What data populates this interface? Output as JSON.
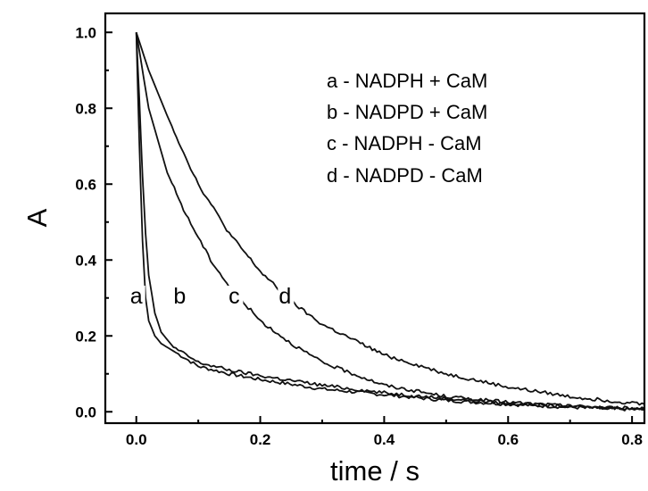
{
  "chart_data": {
    "type": "line",
    "xlabel": "time / s",
    "ylabel": "A",
    "xlim": [
      -0.05,
      0.82
    ],
    "ylim": [
      -0.03,
      1.05
    ],
    "xticks": [
      "0.0",
      "0.2",
      "0.4",
      "0.6",
      "0.8"
    ],
    "yticks": [
      "0.0",
      "0.2",
      "0.4",
      "0.6",
      "0.8",
      "1.0"
    ],
    "grid": false,
    "legend": {
      "position": "top-right",
      "entries": [
        "a - NADPH + CaM",
        "b - NADPD + CaM",
        "c - NADPH - CaM",
        "d - NADPD - CaM"
      ]
    },
    "series": [
      {
        "name": "a",
        "x": [
          0,
          0.005,
          0.01,
          0.015,
          0.02,
          0.03,
          0.04,
          0.06,
          0.08,
          0.1,
          0.15,
          0.2,
          0.3,
          0.4,
          0.5,
          0.6,
          0.7,
          0.82
        ],
        "y": [
          1.0,
          0.7,
          0.45,
          0.3,
          0.24,
          0.2,
          0.18,
          0.16,
          0.14,
          0.12,
          0.1,
          0.085,
          0.06,
          0.045,
          0.03,
          0.02,
          0.012,
          0.005
        ]
      },
      {
        "name": "b",
        "x": [
          0,
          0.005,
          0.01,
          0.015,
          0.02,
          0.03,
          0.04,
          0.06,
          0.08,
          0.1,
          0.15,
          0.2,
          0.3,
          0.4,
          0.5,
          0.6,
          0.7,
          0.82
        ],
        "y": [
          1.0,
          0.82,
          0.62,
          0.47,
          0.36,
          0.26,
          0.21,
          0.17,
          0.15,
          0.13,
          0.11,
          0.095,
          0.07,
          0.05,
          0.035,
          0.022,
          0.014,
          0.008
        ]
      },
      {
        "name": "c",
        "x": [
          0,
          0.02,
          0.05,
          0.08,
          0.1,
          0.12,
          0.15,
          0.2,
          0.25,
          0.3,
          0.4,
          0.5,
          0.6,
          0.7,
          0.82
        ],
        "y": [
          1.0,
          0.8,
          0.63,
          0.52,
          0.46,
          0.4,
          0.33,
          0.24,
          0.18,
          0.13,
          0.07,
          0.04,
          0.025,
          0.015,
          0.008
        ]
      },
      {
        "name": "d",
        "x": [
          0,
          0.02,
          0.05,
          0.08,
          0.1,
          0.15,
          0.2,
          0.25,
          0.3,
          0.35,
          0.4,
          0.5,
          0.6,
          0.7,
          0.82
        ],
        "y": [
          1.0,
          0.9,
          0.78,
          0.67,
          0.6,
          0.47,
          0.37,
          0.29,
          0.23,
          0.19,
          0.15,
          0.1,
          0.065,
          0.04,
          0.02
        ]
      }
    ],
    "curve_labels": [
      {
        "text": "a",
        "x": 0.0,
        "y": 0.29
      },
      {
        "text": "b",
        "x": 0.07,
        "y": 0.29
      },
      {
        "text": "c",
        "x": 0.158,
        "y": 0.29
      },
      {
        "text": "d",
        "x": 0.24,
        "y": 0.29
      }
    ]
  }
}
